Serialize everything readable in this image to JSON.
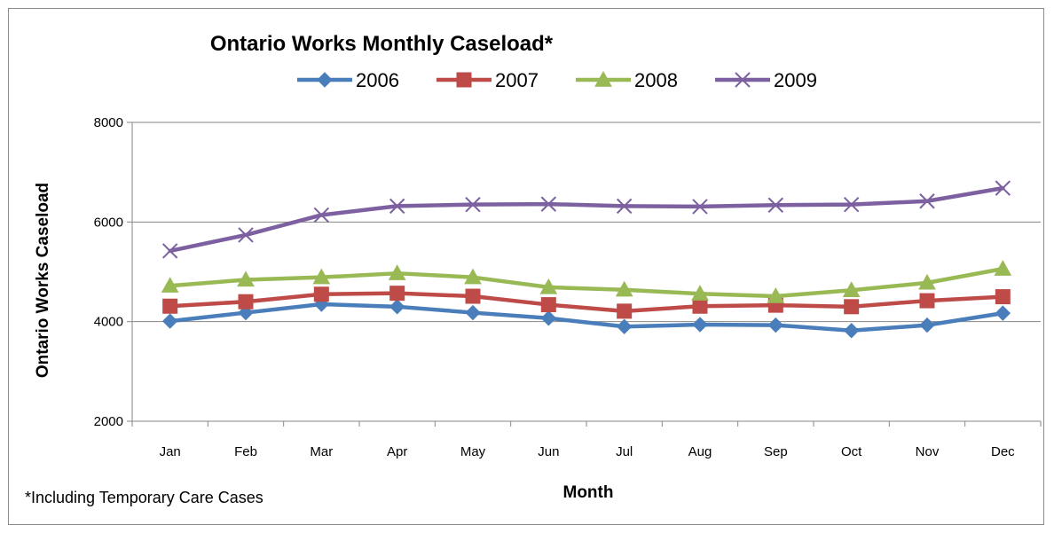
{
  "chart_data": {
    "type": "line",
    "title": "Ontario Works Monthly Caseload*",
    "xlabel": "Month",
    "ylabel": "Ontario Works Caseload",
    "note": "*Including Temporary Care Cases",
    "categories": [
      "Jan",
      "Feb",
      "Mar",
      "Apr",
      "May",
      "Jun",
      "Jul",
      "Aug",
      "Sep",
      "Oct",
      "Nov",
      "Dec"
    ],
    "ylim": [
      2000,
      8000
    ],
    "yticks": [
      "2000",
      "4000",
      "6000",
      "8000"
    ],
    "grid": true,
    "legend_position": "top",
    "series": [
      {
        "name": "2006",
        "color": "#4a7ebb",
        "marker": "diamond",
        "values": [
          4010,
          4180,
          4350,
          4300,
          4180,
          4070,
          3900,
          3940,
          3930,
          3820,
          3930,
          4170
        ]
      },
      {
        "name": "2007",
        "color": "#be4b48",
        "marker": "square",
        "values": [
          4310,
          4400,
          4550,
          4570,
          4510,
          4340,
          4210,
          4310,
          4330,
          4300,
          4420,
          4500
        ]
      },
      {
        "name": "2008",
        "color": "#98b954",
        "marker": "triangle",
        "values": [
          4720,
          4840,
          4890,
          4970,
          4890,
          4690,
          4640,
          4560,
          4510,
          4630,
          4780,
          5060
        ]
      },
      {
        "name": "2009",
        "color": "#7d60a0",
        "marker": "x",
        "values": [
          5420,
          5740,
          6140,
          6320,
          6350,
          6360,
          6320,
          6310,
          6340,
          6350,
          6420,
          6680
        ]
      }
    ]
  }
}
